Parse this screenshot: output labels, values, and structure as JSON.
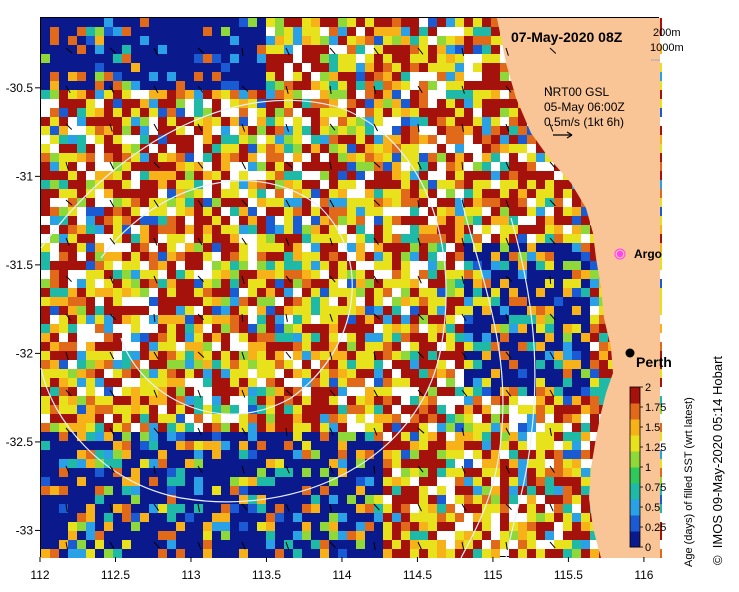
{
  "map": {
    "date_title": "07-May-2020 08Z",
    "isobath_labels": [
      "200m",
      "1000m"
    ],
    "wind_model": "NRT00 GSL",
    "wind_time": "05-May 06:00Z",
    "wind_scale": "0.5m/s (1kt 6h)",
    "argo_label": "Argo",
    "city_label": "Perth",
    "region": {
      "lon_min": 112,
      "lon_max": 116.1,
      "lat_min": -33.15,
      "lat_max": -30.1
    }
  },
  "axes": {
    "x_ticks": [
      "112",
      "112.5",
      "113",
      "113.5",
      "114",
      "114.5",
      "115",
      "115.5",
      "116"
    ],
    "x_tick_values": [
      112,
      112.5,
      113,
      113.5,
      114,
      114.5,
      115,
      115.5,
      116
    ],
    "y_ticks": [
      "-30.5",
      "-31",
      "-31.5",
      "-32",
      "-32.5",
      "-33"
    ],
    "y_tick_values": [
      -30.5,
      -31,
      -31.5,
      -32,
      -32.5,
      -33
    ]
  },
  "colorbar": {
    "title": "Age (days) of filled SST (wrt latest)",
    "ticks": [
      "2",
      "1.75",
      "1.5",
      "1.25",
      "1",
      "0.75",
      "0.5",
      "0.25",
      "0"
    ],
    "colors": [
      "#0a1a8c",
      "#1a5ad2",
      "#2aa0e6",
      "#1fb9a8",
      "#2ec95a",
      "#8fd83a",
      "#e8e21c",
      "#f7b21a",
      "#e06a1a",
      "#a5120c"
    ]
  },
  "credit": "IMOS 09-May-2020 05:14 Hobart",
  "colors": {
    "land": "#f9c496",
    "no_data": "#ffffff",
    "contour": "#e8f0ff"
  }
}
